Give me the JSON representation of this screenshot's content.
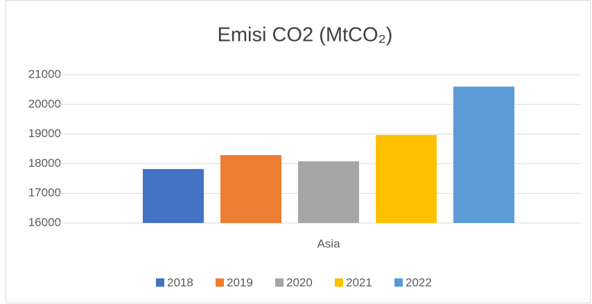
{
  "chart_data": {
    "type": "bar",
    "title": "Emisi CO2 (MtCO₂)",
    "categories": [
      "Asia"
    ],
    "series": [
      {
        "name": "2018",
        "color": "#4472c4",
        "values": [
          17820
        ]
      },
      {
        "name": "2019",
        "color": "#ed7d31",
        "values": [
          18290
        ]
      },
      {
        "name": "2020",
        "color": "#a5a5a5",
        "values": [
          18080
        ]
      },
      {
        "name": "2021",
        "color": "#ffc000",
        "values": [
          18970
        ]
      },
      {
        "name": "2022",
        "color": "#5b9bd5",
        "values": [
          20600
        ]
      }
    ],
    "ylim": [
      16000,
      21000
    ],
    "yticks": [
      16000,
      17000,
      18000,
      19000,
      20000,
      21000
    ],
    "grid": true,
    "legend": "bottom"
  }
}
